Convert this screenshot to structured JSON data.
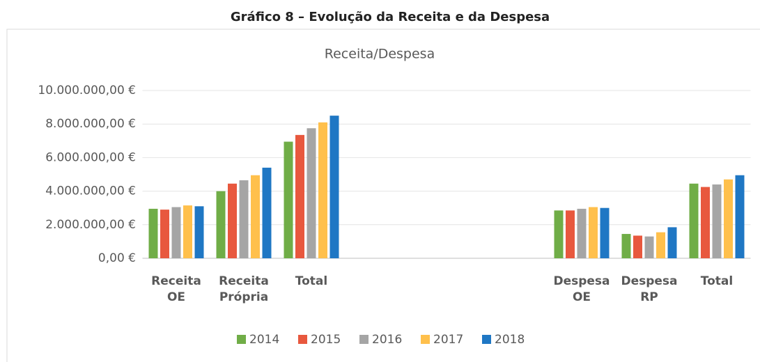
{
  "chart_data": {
    "type": "bar",
    "heading": "Gráfico 8 – Evolução da Receita e da Despesa",
    "title": "Receita/Despesa",
    "categories": [
      "Receita OE",
      "Receita Própria",
      "Total",
      null,
      null,
      null,
      "Despesa OE",
      "Despesa RP",
      "Total"
    ],
    "series": [
      {
        "name": "2014",
        "color": "#70ad47",
        "values": [
          2950000,
          4000000,
          6950000,
          null,
          null,
          null,
          2850000,
          1450000,
          4450000
        ]
      },
      {
        "name": "2015",
        "color": "#e8583e",
        "values": [
          2900000,
          4450000,
          7350000,
          null,
          null,
          null,
          2850000,
          1350000,
          4250000
        ]
      },
      {
        "name": "2016",
        "color": "#a5a5a5",
        "values": [
          3050000,
          4650000,
          7750000,
          null,
          null,
          null,
          2950000,
          1300000,
          4400000
        ]
      },
      {
        "name": "2017",
        "color": "#ffc04c",
        "values": [
          3150000,
          4950000,
          8100000,
          null,
          null,
          null,
          3050000,
          1550000,
          4700000
        ]
      },
      {
        "name": "2018",
        "color": "#1f77c4",
        "values": [
          3100000,
          5400000,
          8500000,
          null,
          null,
          null,
          3000000,
          1850000,
          4950000
        ]
      }
    ],
    "ylim": [
      0,
      10000000
    ],
    "yticks": [
      {
        "value": 0,
        "label": "0,00 €"
      },
      {
        "value": 2000000,
        "label": "2.000.000,00 €"
      },
      {
        "value": 4000000,
        "label": "4.000.000,00 €"
      },
      {
        "value": 6000000,
        "label": "6.000.000,00 €"
      },
      {
        "value": 8000000,
        "label": "8.000.000,00 €"
      },
      {
        "value": 10000000,
        "label": "10.000.000,00 €"
      }
    ],
    "grid": true,
    "legend": "bottom"
  }
}
